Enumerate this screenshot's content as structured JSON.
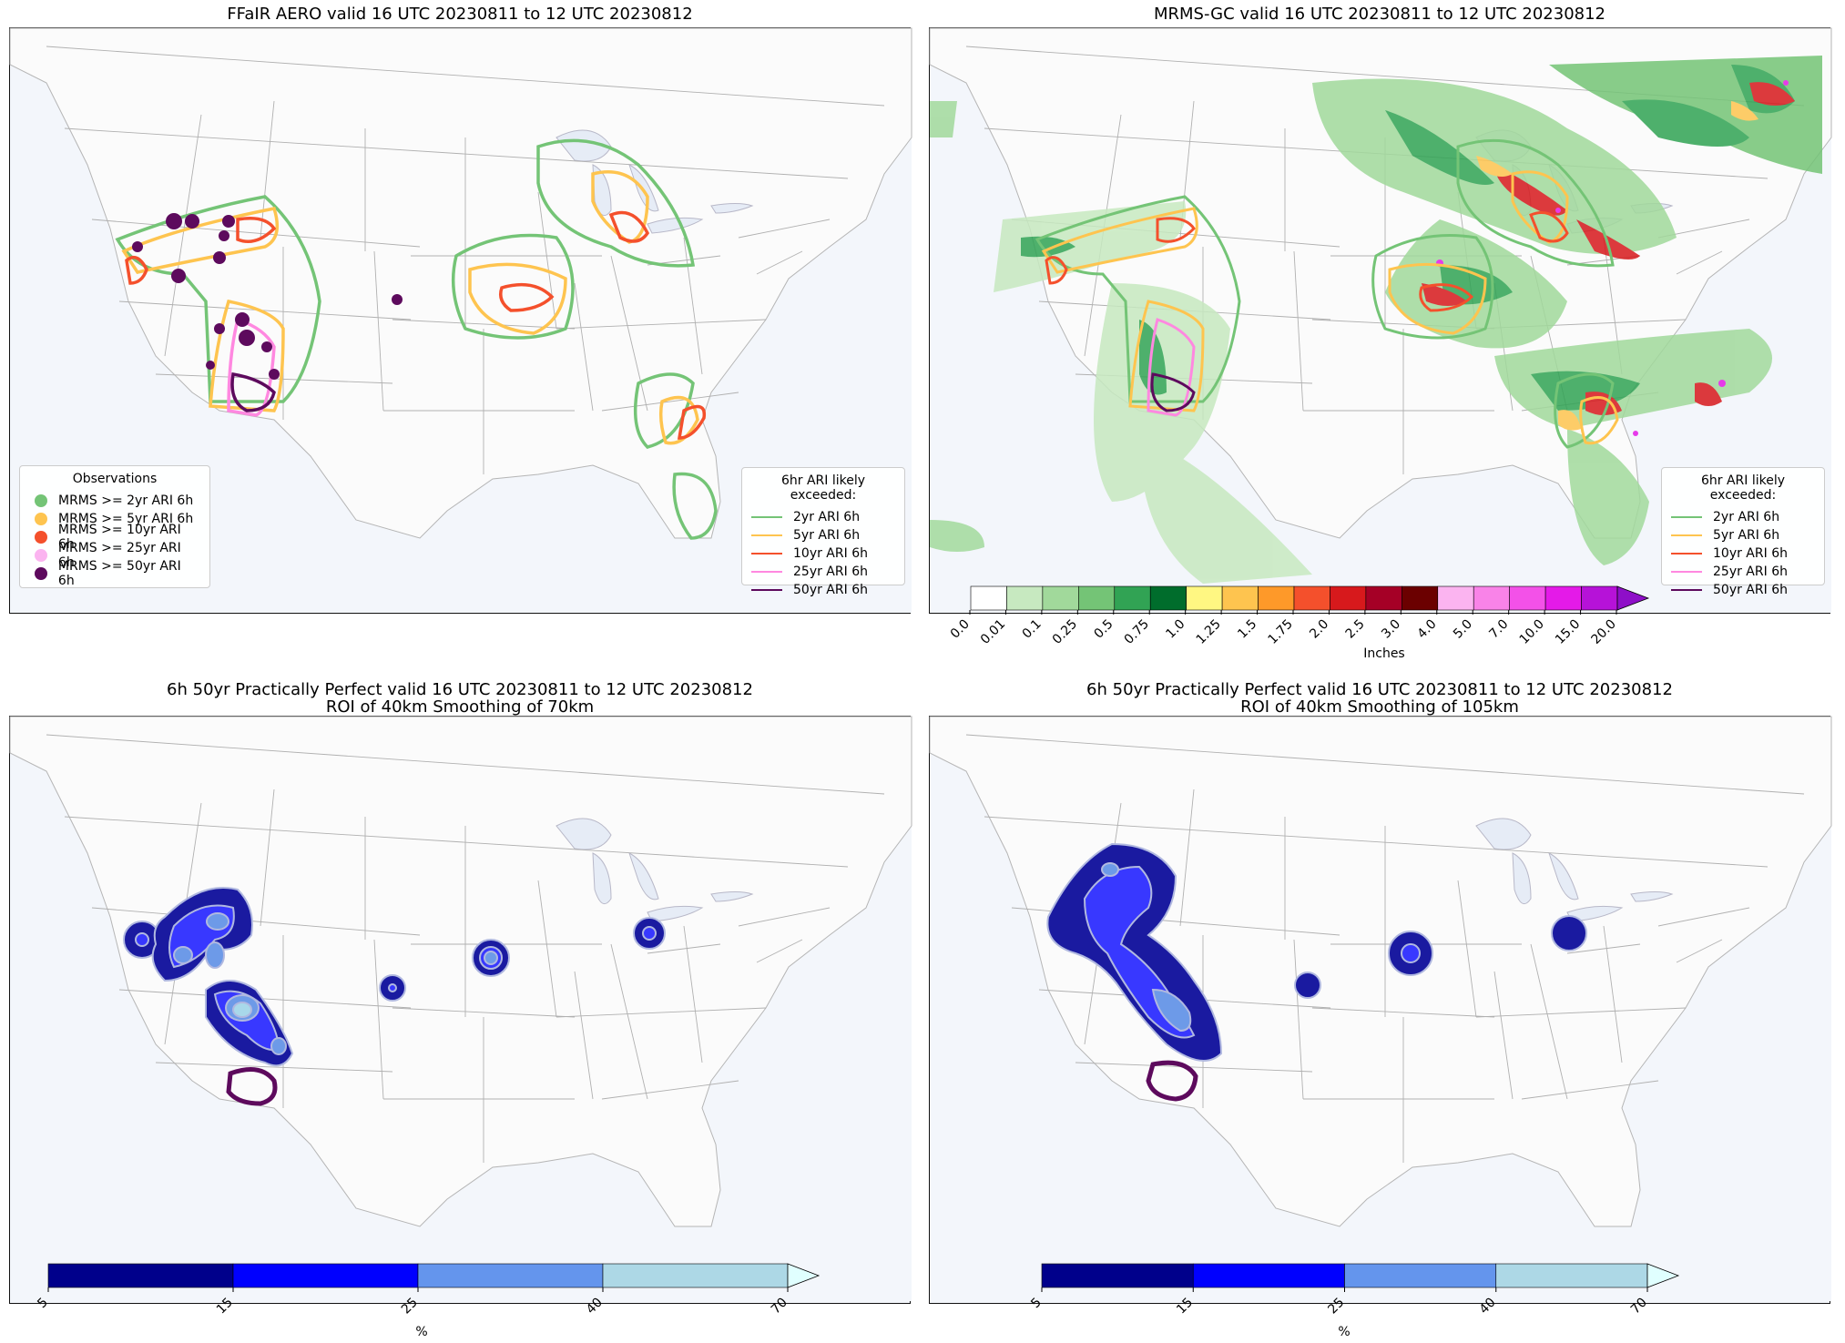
{
  "panels": [
    {
      "title": "FFaIR AERO valid 16 UTC 20230811 to 12 UTC 20230812",
      "obs_legend": {
        "title": "Observations",
        "items": [
          {
            "label": "MRMS >= 2yr ARI 6h",
            "color": "#74c476"
          },
          {
            "label": "MRMS >= 5yr ARI 6h",
            "color": "#fec44f"
          },
          {
            "label": "MRMS >= 10yr ARI 6h",
            "color": "#f4502c"
          },
          {
            "label": "MRMS >= 25yr ARI 6h",
            "color": "#fbb4f0"
          },
          {
            "label": "MRMS >= 50yr ARI 6h",
            "color": "#5d0a5d"
          }
        ]
      },
      "ari_legend": {
        "title": "6hr ARI likely exceeded:",
        "items": [
          {
            "label": "2yr ARI 6h",
            "color": "#74c476"
          },
          {
            "label": "5yr ARI 6h",
            "color": "#fec44f"
          },
          {
            "label": "10yr ARI 6h",
            "color": "#f4502c"
          },
          {
            "label": "25yr ARI 6h",
            "color": "#ff88e0"
          },
          {
            "label": "50yr ARI 6h",
            "color": "#5d0a5d"
          }
        ]
      }
    },
    {
      "title": "MRMS-GC valid 16 UTC 20230811 to 12 UTC 20230812",
      "ari_legend": {
        "title": "6hr ARI likely exceeded:",
        "items": [
          {
            "label": "2yr ARI 6h",
            "color": "#74c476"
          },
          {
            "label": "5yr ARI 6h",
            "color": "#fec44f"
          },
          {
            "label": "10yr ARI 6h",
            "color": "#f4502c"
          },
          {
            "label": "25yr ARI 6h",
            "color": "#ff88e0"
          },
          {
            "label": "50yr ARI 6h",
            "color": "#5d0a5d"
          }
        ]
      },
      "colorbar": {
        "label": "Inches",
        "ticks": [
          "0.0",
          "0.01",
          "0.1",
          "0.25",
          "0.5",
          "0.75",
          "1.0",
          "1.25",
          "1.5",
          "1.75",
          "2.0",
          "2.5",
          "3.0",
          "4.0",
          "5.0",
          "7.0",
          "10.0",
          "15.0",
          "20.0"
        ],
        "colors": [
          "#ffffff",
          "#c7e9c0",
          "#a1d99b",
          "#74c476",
          "#31a354",
          "#006d2c",
          "#fff782",
          "#fec44f",
          "#fe9929",
          "#f4502c",
          "#d7191c",
          "#a50026",
          "#6b0000",
          "#fbb4f0",
          "#f983e8",
          "#f351e8",
          "#e41ae8",
          "#b612d8"
        ],
        "extend_color": "#8e0fc8"
      }
    },
    {
      "title": "6h 50yr Practically Perfect valid 16 UTC 20230811 to 12 UTC 20230812\nROI of 40km Smoothing of 70km",
      "colorbar": {
        "label": "%",
        "ticks": [
          "5",
          "15",
          "25",
          "40",
          "70"
        ],
        "colors": [
          "#00008b",
          "#0000ff",
          "#6495ed",
          "#add8e6"
        ],
        "extend_color": "#e0ffff"
      }
    },
    {
      "title": "6h 50yr Practically Perfect valid 16 UTC 20230811 to 12 UTC 20230812\nROI of 40km Smoothing of 105km",
      "colorbar": {
        "label": "%",
        "ticks": [
          "5",
          "15",
          "25",
          "40",
          "70"
        ],
        "colors": [
          "#00008b",
          "#0000ff",
          "#6495ed",
          "#add8e6"
        ],
        "extend_color": "#e0ffff"
      }
    }
  ]
}
